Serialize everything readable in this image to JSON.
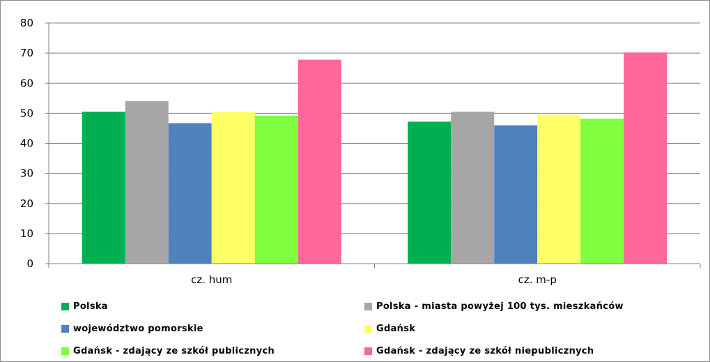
{
  "chart_data": {
    "type": "bar",
    "title": "",
    "xlabel": "",
    "ylabel": "",
    "ylim": [
      0,
      80
    ],
    "yticks": [
      0,
      10,
      20,
      30,
      40,
      50,
      60,
      70,
      80
    ],
    "grid": true,
    "legend_position": "bottom",
    "categories": [
      "cz. hum",
      "cz. m-p"
    ],
    "series": [
      {
        "name": "Polska",
        "color": "#00b050",
        "values": [
          50.5,
          47.2
        ]
      },
      {
        "name": "Polska - miasta powyżej 100 tys. mieszkańców",
        "color": "#a6a6a6",
        "values": [
          54.0,
          50.5
        ]
      },
      {
        "name": "województwo pomorskie",
        "color": "#4f81bd",
        "values": [
          46.7,
          46.0
        ]
      },
      {
        "name": "Gdańsk",
        "color": "#ffff66",
        "values": [
          50.5,
          49.5
        ]
      },
      {
        "name": "Gdańsk - zdający ze szkół publicznych",
        "color": "#80ff40",
        "values": [
          49.2,
          48.2
        ]
      },
      {
        "name": "Gdańsk - zdający ze szkół niepublicznych",
        "color": "#ff6699",
        "values": [
          67.8,
          70.2
        ]
      }
    ]
  }
}
